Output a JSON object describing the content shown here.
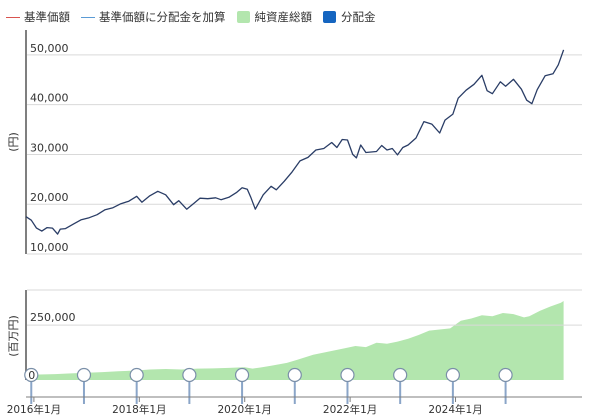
{
  "legend": {
    "nav_label": "基準価額",
    "nav_reinvested_label": "基準価額に分配金を加算",
    "net_assets_label": "純資産総額",
    "distribution_label": "分配金"
  },
  "colors": {
    "nav_line": "#d9534f",
    "nav_reinvested_line": "#5b9bd5",
    "line": "#2a3d66",
    "area": "#b3e6ae",
    "distribution": "#1565c0",
    "axis": "#7f7f7f",
    "grid": "#d9d9d9"
  },
  "chart_data": [
    {
      "type": "line",
      "ylabel": "(円)",
      "ylim": [
        10000,
        55000
      ],
      "yticks": [
        10000,
        20000,
        30000,
        40000,
        50000
      ],
      "ytick_labels": [
        "10,000",
        "20,000",
        "30,000",
        "40,000",
        "50,000"
      ],
      "xlim": [
        2015.85,
        2026.4
      ],
      "grid": true,
      "series": [
        {
          "name": "基準価額",
          "x": [
            2015.85,
            2015.95,
            2016.05,
            2016.15,
            2016.25,
            2016.35,
            2016.45,
            2016.5,
            2016.6,
            2016.75,
            2016.9,
            2017.05,
            2017.2,
            2017.35,
            2017.5,
            2017.65,
            2017.8,
            2017.95,
            2018.05,
            2018.2,
            2018.35,
            2018.5,
            2018.65,
            2018.75,
            2018.9,
            2019.05,
            2019.15,
            2019.3,
            2019.45,
            2019.55,
            2019.7,
            2019.85,
            2019.95,
            2020.05,
            2020.12,
            2020.2,
            2020.35,
            2020.5,
            2020.6,
            2020.75,
            2020.9,
            2021.05,
            2021.2,
            2021.35,
            2021.5,
            2021.65,
            2021.75,
            2021.85,
            2021.95,
            2022.05,
            2022.12,
            2022.2,
            2022.3,
            2022.4,
            2022.5,
            2022.6,
            2022.7,
            2022.8,
            2022.9,
            2023.0,
            2023.1,
            2023.25,
            2023.4,
            2023.55,
            2023.7,
            2023.8,
            2023.95,
            2024.05,
            2024.2,
            2024.35,
            2024.5,
            2024.6,
            2024.7,
            2024.85,
            2024.95,
            2025.1,
            2025.25,
            2025.35,
            2025.45,
            2025.55,
            2025.7,
            2025.85,
            2025.95,
            2026.05
          ],
          "y": [
            17500,
            16800,
            15200,
            14600,
            15300,
            15200,
            14000,
            15000,
            15100,
            16000,
            16900,
            17300,
            17900,
            18900,
            19300,
            20100,
            20600,
            21600,
            20400,
            21700,
            22600,
            21900,
            19900,
            20700,
            19000,
            20300,
            21200,
            21100,
            21300,
            20900,
            21400,
            22400,
            23300,
            23000,
            21300,
            19000,
            21900,
            23600,
            22900,
            24600,
            26500,
            28700,
            29400,
            30900,
            31200,
            32400,
            31400,
            33000,
            32900,
            30000,
            29300,
            31900,
            30400,
            30500,
            30600,
            31800,
            30900,
            31200,
            29900,
            31400,
            31900,
            33300,
            36600,
            36100,
            34300,
            36900,
            38100,
            41300,
            42900,
            44100,
            45900,
            42800,
            42200,
            44600,
            43700,
            45100,
            43100,
            40900,
            40200,
            43000,
            45800,
            46200,
            48000,
            51000
          ]
        }
      ]
    },
    {
      "type": "area",
      "ylabel": "(百万円)",
      "ylim": [
        0,
        410000
      ],
      "yticks": [
        0,
        250000
      ],
      "ytick_labels": [
        "0",
        "250,000"
      ],
      "xlim": [
        2015.85,
        2026.4
      ],
      "series": [
        {
          "name": "純資産総額",
          "x": [
            2015.85,
            2016.1,
            2016.4,
            2016.7,
            2017.0,
            2017.3,
            2017.6,
            2017.9,
            2018.2,
            2018.5,
            2018.8,
            2019.1,
            2019.4,
            2019.7,
            2020.0,
            2020.15,
            2020.3,
            2020.5,
            2020.8,
            2021.0,
            2021.3,
            2021.6,
            2021.9,
            2022.1,
            2022.3,
            2022.5,
            2022.7,
            2022.9,
            2023.1,
            2023.3,
            2023.5,
            2023.7,
            2023.9,
            2024.1,
            2024.3,
            2024.5,
            2024.7,
            2024.9,
            2025.1,
            2025.3,
            2025.4,
            2025.6,
            2025.8,
            2026.0,
            2026.05
          ],
          "y": [
            22000,
            25000,
            27000,
            30000,
            33000,
            36000,
            40000,
            43000,
            48000,
            50000,
            48000,
            52000,
            53000,
            55000,
            58000,
            52000,
            57000,
            65000,
            78000,
            92000,
            115000,
            130000,
            145000,
            155000,
            150000,
            170000,
            165000,
            175000,
            188000,
            205000,
            225000,
            230000,
            235000,
            270000,
            280000,
            295000,
            290000,
            305000,
            300000,
            285000,
            290000,
            315000,
            335000,
            352000,
            360000
          ]
        }
      ]
    }
  ],
  "distribution_markers": {
    "x": [
      2015.95,
      2016.95,
      2017.95,
      2018.95,
      2019.95,
      2020.95,
      2021.95,
      2022.95,
      2023.95,
      2024.95
    ]
  },
  "x_axis": {
    "ticks": [
      2016,
      2018,
      2020,
      2022,
      2024
    ],
    "labels": [
      "2016年1月",
      "2018年1月",
      "2020年1月",
      "2022年1月",
      "2024年1月"
    ]
  }
}
